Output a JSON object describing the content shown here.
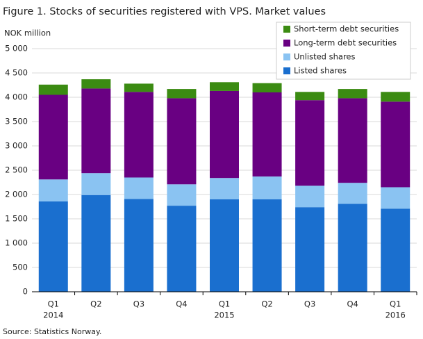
{
  "chart_data": {
    "type": "stacked-bar",
    "title": "Figure 1. Stocks of securities registered with VPS. Market values",
    "y_label": "NOK million",
    "source": "Source: Statistics Norway.",
    "categories": [
      "Q1",
      "Q2",
      "Q3",
      "Q4",
      "Q1",
      "Q2",
      "Q3",
      "Q4",
      "Q1"
    ],
    "category_years": [
      "2014",
      null,
      null,
      null,
      "2015",
      null,
      null,
      null,
      "2016"
    ],
    "series": [
      {
        "name": "Listed shares",
        "color": "#1a6fcf",
        "values": [
          1860,
          1990,
          1910,
          1770,
          1900,
          1900,
          1740,
          1810,
          1710
        ]
      },
      {
        "name": "Unlisted shares",
        "color": "#8ac3f2",
        "values": [
          450,
          450,
          440,
          440,
          440,
          470,
          440,
          430,
          440
        ]
      },
      {
        "name": "Long-term debt securities",
        "color": "#690082",
        "values": [
          1740,
          1740,
          1760,
          1770,
          1790,
          1730,
          1760,
          1740,
          1760
        ]
      },
      {
        "name": "Short-term debt securities",
        "color": "#3b8b12",
        "values": [
          210,
          190,
          170,
          190,
          180,
          190,
          170,
          190,
          200
        ]
      }
    ],
    "ylim": [
      0,
      5000
    ],
    "yticks": [
      0,
      500,
      {
        "value": 1000,
        "label": "1 000"
      },
      {
        "value": 1500,
        "label": "1 500"
      },
      {
        "value": 2000,
        "label": "2 000"
      },
      {
        "value": 2500,
        "label": "2 500"
      },
      {
        "value": 3000,
        "label": "3 000"
      },
      {
        "value": 3500,
        "label": "3 500"
      },
      {
        "value": 4000,
        "label": "4 000"
      },
      {
        "value": 4500,
        "label": "4 500"
      },
      {
        "value": 5000,
        "label": "5 000"
      }
    ],
    "grid": true
  }
}
